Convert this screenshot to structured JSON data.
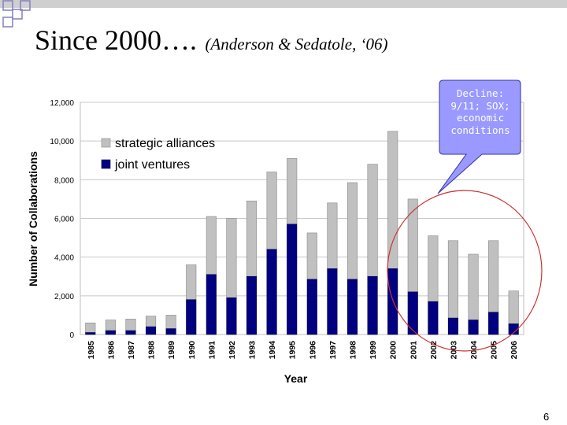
{
  "slide": {
    "title": "Since 2000….",
    "citation": "(Anderson & Sedatole, ‘06)",
    "page_number": "6"
  },
  "callout": {
    "lines": [
      "Decline:",
      "9/11; SOX;",
      "economic",
      "conditions"
    ]
  },
  "colors": {
    "strategic_alliances": "#c0c0c0",
    "joint_ventures": "#000080",
    "callout_fill": "#9999ff",
    "highlight_circle": "#cc3333"
  },
  "chart_data": {
    "type": "bar",
    "stacked": true,
    "xlabel": "Year",
    "ylabel": "Number of Collaborations",
    "ylim": [
      0,
      12000
    ],
    "yticks": [
      "0",
      "2,000",
      "4,000",
      "6,000",
      "8,000",
      "10,000",
      "12,000"
    ],
    "grid": true,
    "legend_position": "top-left",
    "categories": [
      "1985",
      "1986",
      "1987",
      "1988",
      "1989",
      "1990",
      "1991",
      "1992",
      "1993",
      "1994",
      "1995",
      "1996",
      "1997",
      "1998",
      "1999",
      "2000",
      "2001",
      "2002",
      "2003",
      "2004",
      "2005",
      "2006"
    ],
    "series": [
      {
        "name": "strategic alliances",
        "values": [
          500,
          550,
          600,
          550,
          700,
          1800,
          3000,
          4100,
          3900,
          4000,
          3400,
          2400,
          3400,
          5000,
          5800,
          7100,
          4800,
          3400,
          4000,
          3400,
          3700,
          1700
        ]
      },
      {
        "name": "joint ventures",
        "values": [
          100,
          200,
          200,
          400,
          300,
          1800,
          3100,
          1900,
          3000,
          4400,
          5700,
          2850,
          3400,
          2850,
          3000,
          3400,
          2200,
          1700,
          850,
          750,
          1150,
          550
        ]
      }
    ]
  }
}
